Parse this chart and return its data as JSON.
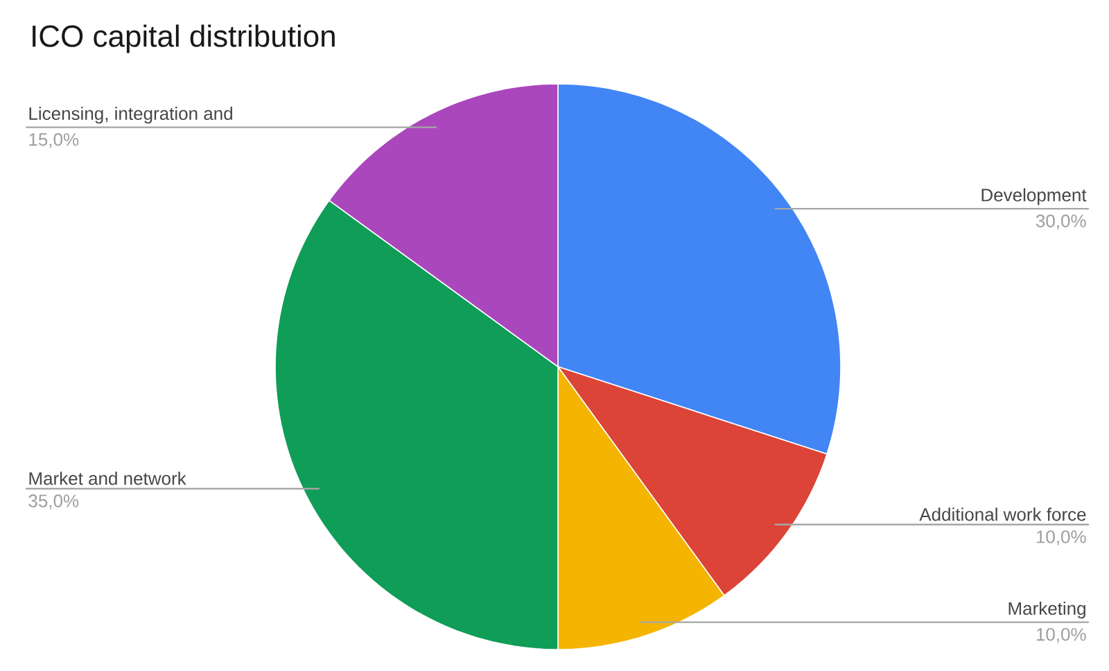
{
  "chart_data": {
    "type": "pie",
    "title": "ICO capital distribution",
    "categories": [
      "Development",
      "Additional work force",
      "Marketing",
      "Market and network",
      "Licensing, integration and"
    ],
    "values": [
      30,
      10,
      10,
      35,
      15
    ],
    "colors": [
      "#4285f4",
      "#db4437",
      "#f4b400",
      "#0f9d58",
      "#ab47bc"
    ],
    "value_labels": [
      "30,0%",
      "10,0%",
      "10,0%",
      "35,0%",
      "15,0%"
    ]
  }
}
